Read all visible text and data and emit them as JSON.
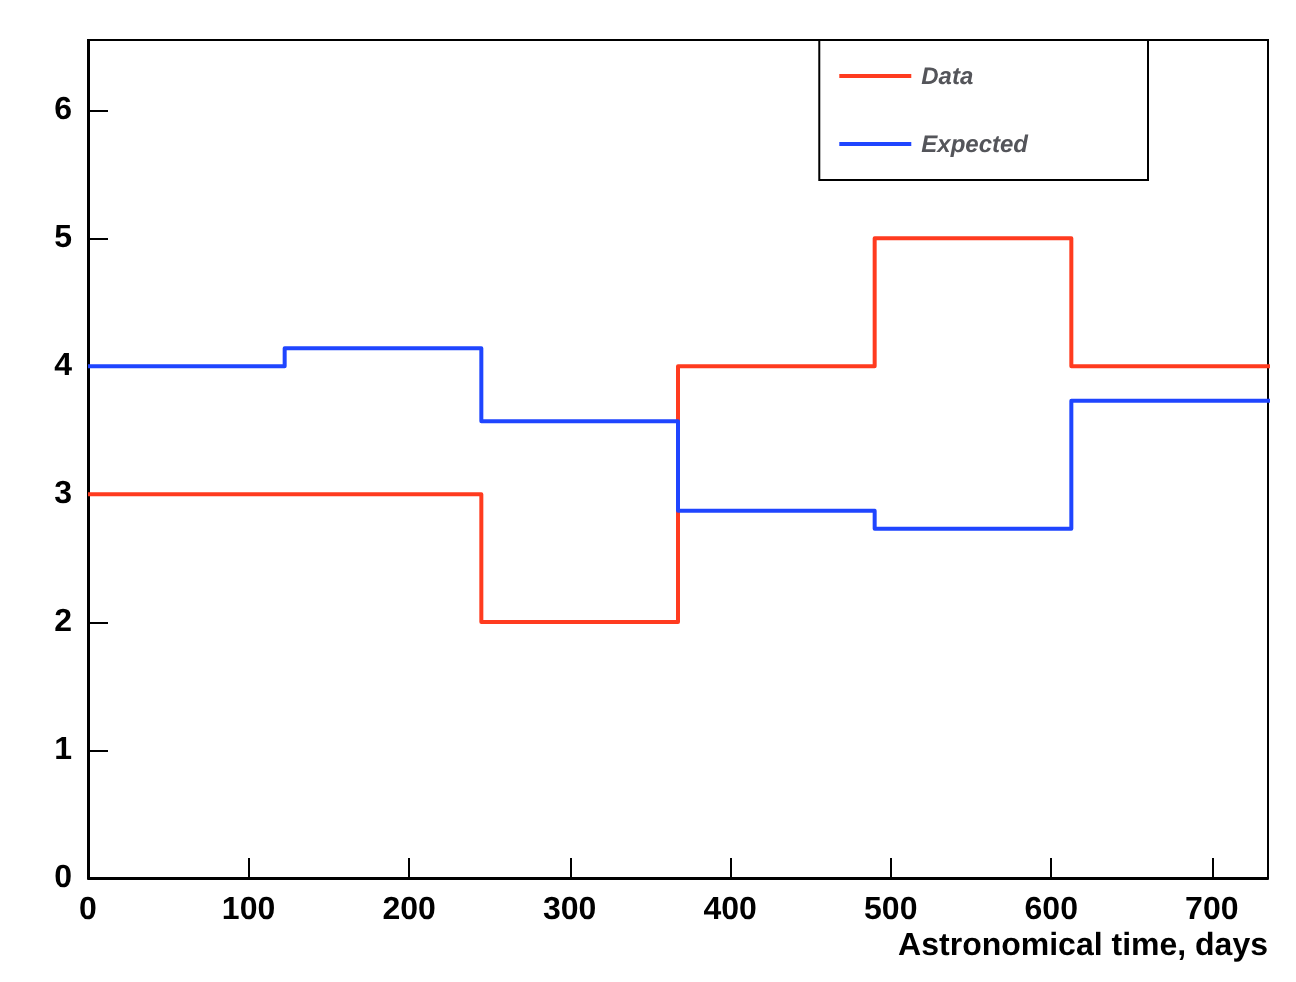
{
  "chart_data": {
    "type": "step",
    "xlabel": "Astronomical time, days",
    "x": [
      0,
      122.5,
      245,
      367.5,
      490,
      612.5
    ],
    "series": [
      {
        "name": "Data",
        "color": "#ff3b1f",
        "values": [
          3,
          3,
          2,
          4,
          5,
          4
        ]
      },
      {
        "name": "Expected",
        "color": "#1f45ff",
        "values": [
          4.0,
          4.14,
          3.57,
          2.87,
          2.73,
          3.73
        ]
      }
    ],
    "xlim": [
      0,
      735
    ],
    "ylim": [
      0,
      6.55
    ],
    "xticks": [
      0,
      100,
      200,
      300,
      400,
      500,
      600,
      700
    ],
    "yticks": [
      0,
      1,
      2,
      3,
      4,
      5,
      6
    ],
    "grid": false,
    "legend": "top right",
    "line_style": "solid",
    "marker": "none"
  }
}
